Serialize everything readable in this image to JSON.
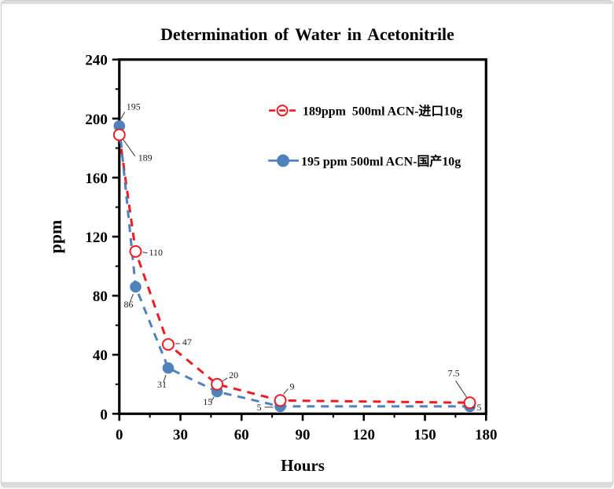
{
  "window": {
    "background": "#ffffff",
    "frame_color": "#dcdcdc"
  },
  "chart_data": {
    "type": "line",
    "title": "Determination of Water in Acetonitrile",
    "xlabel": "Hours",
    "ylabel": "ppm",
    "xlim": [
      0,
      180
    ],
    "ylim": [
      0,
      240
    ],
    "x_major_ticks": [
      0,
      30,
      60,
      90,
      120,
      150,
      180
    ],
    "x_minor_ticks": [
      15,
      45,
      75,
      105,
      135,
      165
    ],
    "y_major_ticks": [
      0,
      40,
      80,
      120,
      160,
      200,
      240
    ],
    "y_minor_ticks": [
      20,
      60,
      100,
      140,
      180,
      220
    ],
    "grid": false,
    "legend_position": "inside-top-right",
    "axis_color": "#000000",
    "series": [
      {
        "name": "189ppm  500ml ACN-进口10g",
        "color": "#ed1c24",
        "line_style": "dashed",
        "marker": "open-circle",
        "x": [
          0,
          8,
          24,
          48,
          79,
          172
        ],
        "y": [
          189,
          110,
          47,
          20,
          9,
          7.5
        ],
        "point_labels": [
          "189",
          "110",
          "47",
          "20",
          "9",
          "7.5"
        ]
      },
      {
        "name": "195 ppm 500ml ACN-国产10g",
        "color": "#4f81bd",
        "line_style": "dashed",
        "marker": "filled-circle",
        "x": [
          0,
          8,
          24,
          48,
          79,
          172
        ],
        "y": [
          195,
          86,
          31,
          15,
          5,
          5
        ],
        "point_labels": [
          "195",
          "86",
          "31",
          "15",
          "5",
          "5"
        ]
      }
    ]
  }
}
